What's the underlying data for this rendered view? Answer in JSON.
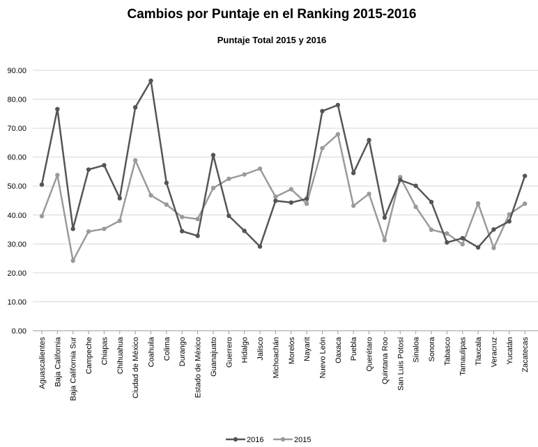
{
  "chart_data": {
    "type": "line",
    "title": "Cambios por Puntaje en el Ranking 2015-2016",
    "subtitle": "Puntaje Total 2015 y 2016",
    "xlabel": "",
    "ylabel": "",
    "ylim": [
      0,
      90
    ],
    "yticks": [
      "0.00",
      "10.00",
      "20.00",
      "30.00",
      "40.00",
      "50.00",
      "60.00",
      "70.00",
      "80.00",
      "90.00"
    ],
    "grid": true,
    "legend_position": "bottom",
    "categories": [
      "Aguascalientes",
      "Baja California",
      "Baja California Sur",
      "Campeche",
      "Chiapas",
      "Chihuahua",
      "Ciudad de México",
      "Coahuila",
      "Colima",
      "Durango",
      "Estado de México",
      "Guanajuato",
      "Guerrero",
      "Hidalgo",
      "Jalisco",
      "Michoachán",
      "Morelos",
      "Nayarit",
      "Nuevo León",
      "Oaxaca",
      "Puebla",
      "Querétaro",
      "Quintana Roo",
      "San Luis Potosí",
      "Sinaloa",
      "Sonora",
      "Tabasco",
      "Tamaulipas",
      "Tlaxcala",
      "Veracruz",
      "Yucatán",
      "Zacatecas"
    ],
    "series": [
      {
        "name": "2016",
        "color": "#555555",
        "values": [
          50.5,
          76.6,
          35.2,
          55.7,
          57.2,
          45.8,
          77.2,
          86.4,
          51.1,
          34.4,
          32.8,
          60.7,
          39.7,
          34.5,
          29.1,
          44.9,
          44.3,
          45.6,
          75.9,
          78.0,
          54.5,
          65.9,
          39.1,
          52.1,
          50.1,
          44.5,
          30.5,
          32.0,
          28.8,
          35.0,
          37.8,
          53.5
        ]
      },
      {
        "name": "2015",
        "color": "#9a9a9a",
        "values": [
          39.6,
          53.8,
          24.2,
          34.3,
          35.2,
          38.0,
          58.9,
          46.8,
          43.6,
          39.3,
          38.6,
          49.3,
          52.5,
          54.0,
          56.0,
          46.3,
          48.9,
          43.9,
          63.1,
          67.9,
          43.2,
          47.3,
          31.3,
          53.1,
          42.8,
          34.9,
          33.6,
          29.9,
          44.0,
          28.6,
          40.2,
          43.9
        ]
      }
    ]
  }
}
